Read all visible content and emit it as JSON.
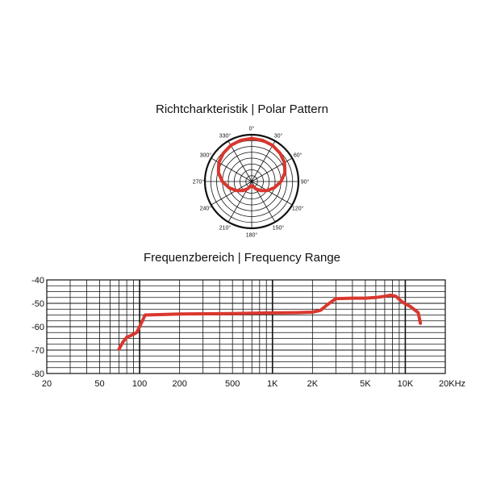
{
  "colors": {
    "curve": "#d9372e",
    "grid": "#111111",
    "background": "#ffffff"
  },
  "chart_data": [
    {
      "type": "polar",
      "title": "Richtcharkteristik | Polar Pattern",
      "angle_labels": [
        "0°",
        "30°",
        "60°",
        "90°",
        "120°",
        "150°",
        "180°",
        "210°",
        "240°",
        "270°",
        "300°",
        "330°"
      ],
      "angles_deg": [
        0,
        15,
        30,
        45,
        60,
        75,
        90,
        105,
        120,
        135,
        150,
        165,
        180,
        195,
        210,
        225,
        240,
        255,
        270,
        285,
        300,
        315,
        330,
        345
      ],
      "relative_level": [
        1.0,
        0.99,
        0.97,
        0.93,
        0.88,
        0.8,
        0.68,
        0.55,
        0.42,
        0.3,
        0.2,
        0.12,
        0.1,
        0.12,
        0.2,
        0.3,
        0.42,
        0.55,
        0.68,
        0.8,
        0.88,
        0.93,
        0.97,
        0.99
      ]
    },
    {
      "type": "line",
      "title": "Frequenzbereich | Frequency Range",
      "x_scale": "log",
      "xlim": [
        20,
        20000
      ],
      "ylim": [
        -80,
        -40
      ],
      "x_tick_labels": [
        {
          "value": 20,
          "label": "20"
        },
        {
          "value": 50,
          "label": "50"
        },
        {
          "value": 100,
          "label": "100"
        },
        {
          "value": 200,
          "label": "200"
        },
        {
          "value": 500,
          "label": "500"
        },
        {
          "value": 1000,
          "label": "1K"
        },
        {
          "value": 2000,
          "label": "2K"
        },
        {
          "value": 5000,
          "label": "5K"
        },
        {
          "value": 10000,
          "label": "10K"
        },
        {
          "value": 20000,
          "label": "20KHz"
        }
      ],
      "y_tick_labels": [
        {
          "value": -40,
          "label": "-40"
        },
        {
          "value": -50,
          "label": "-50"
        },
        {
          "value": -60,
          "label": "-60"
        },
        {
          "value": -70,
          "label": "-70"
        },
        {
          "value": -80,
          "label": "-80"
        }
      ],
      "grid": true,
      "series": [
        {
          "x": [
            70,
            75,
            80,
            88,
            95,
            100,
            110,
            150,
            200,
            300,
            500,
            700,
            1000,
            1500,
            2000,
            2300,
            2600,
            3000,
            4000,
            5000,
            6000,
            7000,
            7800,
            8500,
            9500,
            11000,
            12500,
            13000
          ],
          "y": [
            -69.5,
            -66.5,
            -64.5,
            -63.5,
            -62.5,
            -60,
            -55,
            -54.8,
            -54.6,
            -54.5,
            -54.4,
            -54.2,
            -54.1,
            -54,
            -53.8,
            -53,
            -50.5,
            -48,
            -47.8,
            -47.8,
            -47.5,
            -47,
            -46.5,
            -47,
            -49.5,
            -51.5,
            -54,
            -58.5
          ]
        }
      ]
    }
  ]
}
